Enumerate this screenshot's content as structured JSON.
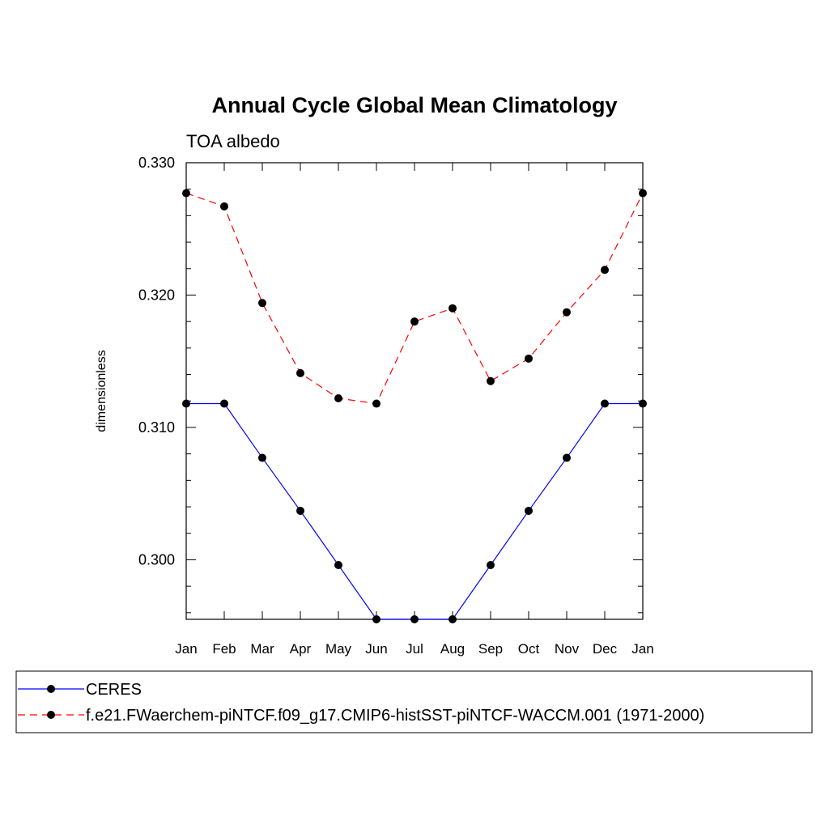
{
  "chart_data": {
    "type": "line",
    "title": "Annual Cycle Global Mean Climatology",
    "subtitle": "TOA albedo",
    "xlabel": "",
    "ylabel": "dimensionless",
    "categories": [
      "Jan",
      "Feb",
      "Mar",
      "Apr",
      "May",
      "Jun",
      "Jul",
      "Aug",
      "Sep",
      "Oct",
      "Nov",
      "Dec",
      "Jan"
    ],
    "ylim": [
      0.2955,
      0.33
    ],
    "yticks": [
      {
        "value": 0.3,
        "label": "0.300"
      },
      {
        "value": 0.31,
        "label": "0.310"
      },
      {
        "value": 0.32,
        "label": "0.320"
      },
      {
        "value": 0.33,
        "label": "0.330"
      }
    ],
    "grid": false,
    "legend_position": "bottom",
    "series": [
      {
        "name": "CERES",
        "color": "#0000ff",
        "dash": "solid",
        "values": [
          0.3118,
          0.3118,
          0.3077,
          0.3037,
          0.2996,
          0.2955,
          0.2955,
          0.2955,
          0.2996,
          0.3037,
          0.3077,
          0.3118,
          0.3118
        ]
      },
      {
        "name": "f.e21.FWaerchem-piNTCF.f09_g17.CMIP6-histSST-piNTCF-WACCM.001 (1971-2000)",
        "color": "#ff0000",
        "dash": "dashed",
        "values": [
          0.3277,
          0.3267,
          0.3194,
          0.3141,
          0.3122,
          0.3118,
          0.318,
          0.319,
          0.3135,
          0.3152,
          0.3187,
          0.3219,
          0.3277
        ]
      }
    ]
  }
}
